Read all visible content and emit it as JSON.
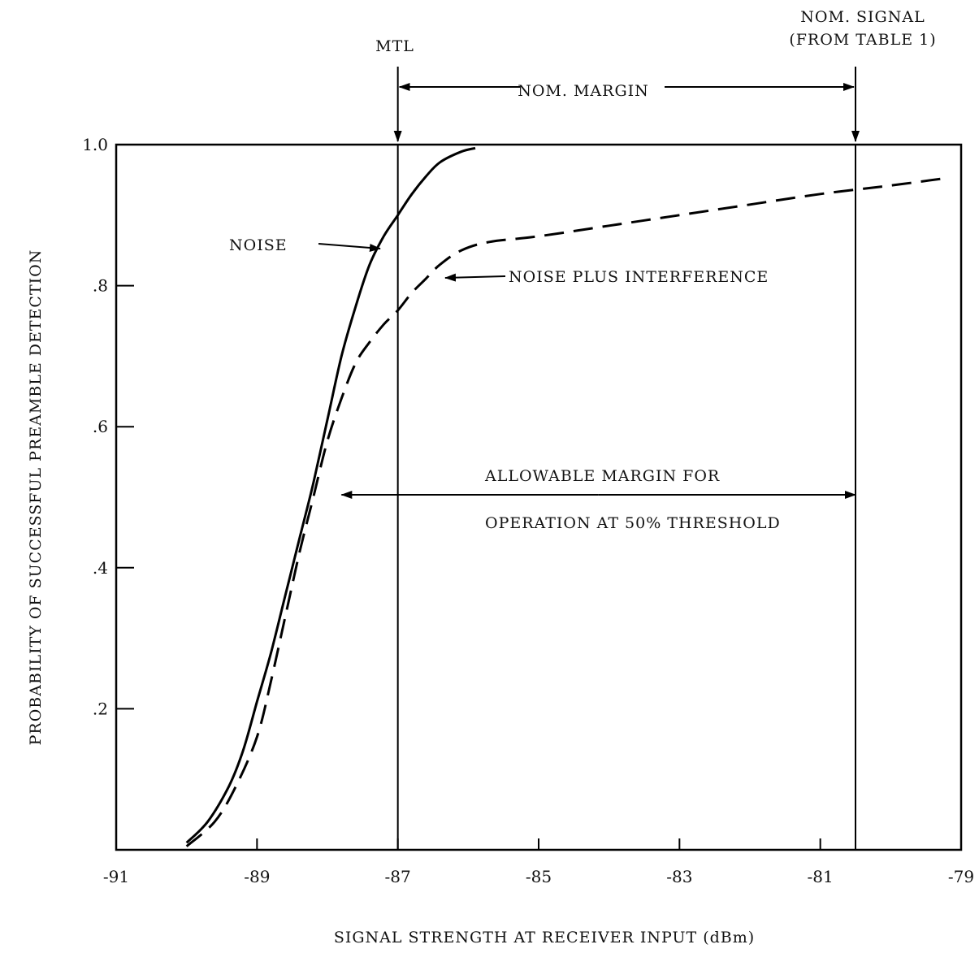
{
  "chart_data": {
    "type": "line",
    "title": "",
    "xlabel": "SIGNAL STRENGTH AT RECEIVER INPUT (dBm)",
    "ylabel": "PROBABILITY OF SUCCESSFUL PREAMBLE DETECTION",
    "xlim": [
      -91,
      -79
    ],
    "ylim": [
      0,
      1.0
    ],
    "x_ticks": [
      "-91",
      "-89",
      "-87",
      "-85",
      "-83",
      "-81",
      "-79"
    ],
    "y_ticks": [
      {
        "value": 0.2,
        "label": ".2"
      },
      {
        "value": 0.4,
        "label": ".4"
      },
      {
        "value": 0.6,
        "label": ".6"
      },
      {
        "value": 0.8,
        "label": ".8"
      },
      {
        "value": 1.0,
        "label": "1.0"
      }
    ],
    "series": [
      {
        "name": "NOISE",
        "style": "solid",
        "color": "#000000",
        "points": [
          [
            -90.0,
            0.01
          ],
          [
            -89.7,
            0.04
          ],
          [
            -89.4,
            0.09
          ],
          [
            -89.2,
            0.14
          ],
          [
            -89.0,
            0.21
          ],
          [
            -88.8,
            0.28
          ],
          [
            -88.6,
            0.36
          ],
          [
            -88.4,
            0.44
          ],
          [
            -88.2,
            0.52
          ],
          [
            -88.0,
            0.61
          ],
          [
            -87.8,
            0.7
          ],
          [
            -87.6,
            0.77
          ],
          [
            -87.4,
            0.83
          ],
          [
            -87.2,
            0.87
          ],
          [
            -87.0,
            0.9
          ],
          [
            -86.8,
            0.93
          ],
          [
            -86.6,
            0.955
          ],
          [
            -86.4,
            0.975
          ],
          [
            -86.1,
            0.99
          ],
          [
            -85.9,
            0.995
          ]
        ]
      },
      {
        "name": "NOISE PLUS INTERFERENCE",
        "style": "dashed",
        "color": "#000000",
        "points": [
          [
            -90.0,
            0.005
          ],
          [
            -89.6,
            0.04
          ],
          [
            -89.3,
            0.09
          ],
          [
            -89.0,
            0.16
          ],
          [
            -88.8,
            0.24
          ],
          [
            -88.6,
            0.33
          ],
          [
            -88.4,
            0.42
          ],
          [
            -88.2,
            0.5
          ],
          [
            -88.0,
            0.58
          ],
          [
            -87.8,
            0.64
          ],
          [
            -87.6,
            0.69
          ],
          [
            -87.4,
            0.72
          ],
          [
            -87.2,
            0.745
          ],
          [
            -87.0,
            0.765
          ],
          [
            -86.8,
            0.79
          ],
          [
            -86.6,
            0.81
          ],
          [
            -86.4,
            0.83
          ],
          [
            -86.1,
            0.85
          ],
          [
            -85.7,
            0.862
          ],
          [
            -85.0,
            0.87
          ],
          [
            -84.0,
            0.885
          ],
          [
            -83.0,
            0.9
          ],
          [
            -82.0,
            0.915
          ],
          [
            -81.0,
            0.93
          ],
          [
            -80.0,
            0.942
          ],
          [
            -79.25,
            0.952
          ]
        ]
      }
    ],
    "reference_lines": [
      {
        "x": -87.0,
        "label": "MTL"
      },
      {
        "x": -80.5,
        "label_line1": "NOM. SIGNAL",
        "label_line2": "(FROM TABLE 1)"
      }
    ],
    "annotations": {
      "noise_label": "NOISE",
      "noise_plus_interference_label": "NOISE PLUS INTERFERENCE",
      "nom_margin_label": "NOM. MARGIN",
      "allowable_margin_line1": "ALLOWABLE MARGIN FOR",
      "allowable_margin_line2": "OPERATION AT 50% THRESHOLD",
      "allowable_margin_range": [
        -87.8,
        -80.5
      ]
    },
    "grid": false,
    "legend": "none"
  }
}
